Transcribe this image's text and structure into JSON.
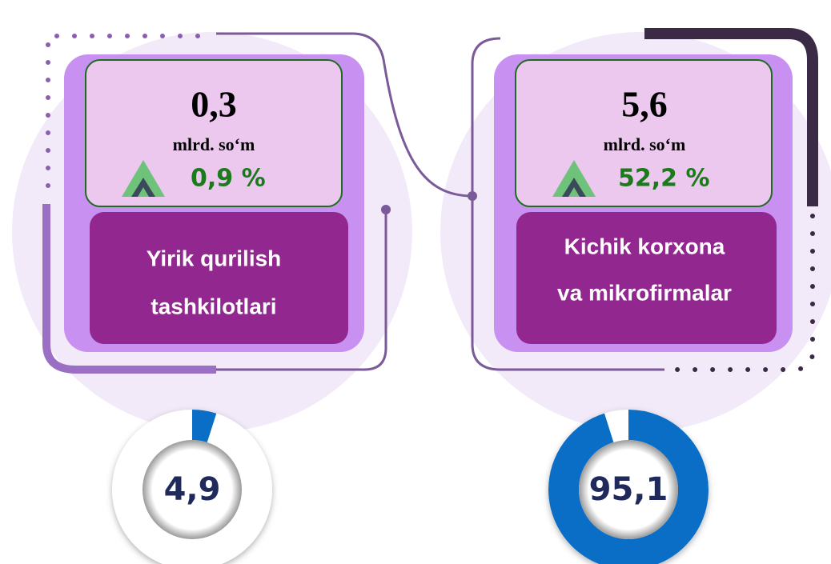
{
  "cards": [
    {
      "value": "0,3",
      "unit": "mlrd. so‘m",
      "change": "0,9 %",
      "label_lines": [
        "Yirik qurilish",
        "tashkilotlari"
      ],
      "share": 4.9,
      "share_label": "4,9"
    },
    {
      "value": "5,6",
      "unit": "mlrd. so‘m",
      "change": "52,2 %",
      "label_lines": [
        "Kichik korxona",
        "va mikrofirmalar"
      ],
      "share": 95.1,
      "share_label": "95,1"
    }
  ]
}
